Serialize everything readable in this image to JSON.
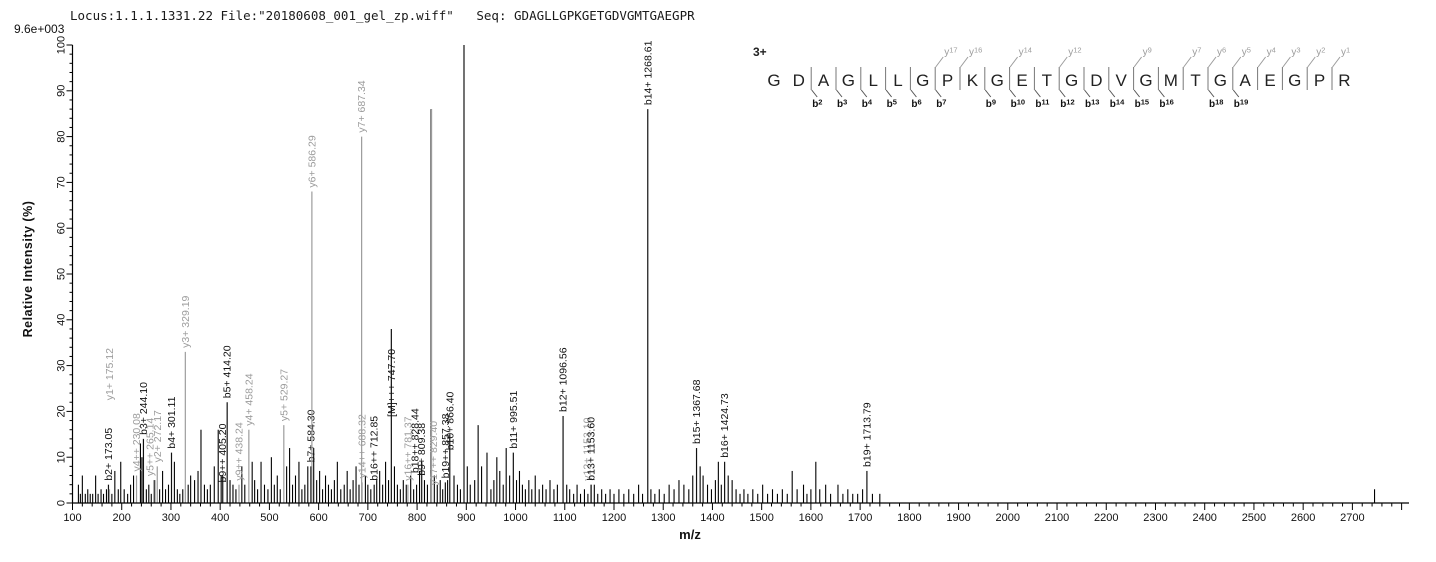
{
  "header": {
    "info_line": "Locus:1.1.1.1331.22 File:\"20180608_001_gel_zp.wiff\"   Seq: GDAGLLGPKGETGDVGMTGAEGPR"
  },
  "sequence_panel": {
    "charge": "3+",
    "residues": [
      "G",
      "D",
      "A",
      "G",
      "L",
      "L",
      "G",
      "P",
      "K",
      "G",
      "E",
      "T",
      "G",
      "D",
      "V",
      "G",
      "M",
      "T",
      "G",
      "A",
      "E",
      "G",
      "P",
      "R"
    ],
    "y_ions": [
      {
        "num": 17,
        "after_residue": 7
      },
      {
        "num": 16,
        "after_residue": 8
      },
      {
        "num": 14,
        "after_residue": 10
      },
      {
        "num": 12,
        "after_residue": 12
      },
      {
        "num": 9,
        "after_residue": 15
      },
      {
        "num": 7,
        "after_residue": 17
      },
      {
        "num": 6,
        "after_residue": 18
      },
      {
        "num": 5,
        "after_residue": 19
      },
      {
        "num": 4,
        "after_residue": 20
      },
      {
        "num": 3,
        "after_residue": 21
      },
      {
        "num": 2,
        "after_residue": 22
      },
      {
        "num": 1,
        "after_residue": 23
      }
    ],
    "b_ions": [
      {
        "num": 2,
        "after_residue": 2
      },
      {
        "num": 3,
        "after_residue": 3
      },
      {
        "num": 4,
        "after_residue": 4
      },
      {
        "num": 5,
        "after_residue": 5
      },
      {
        "num": 6,
        "after_residue": 6
      },
      {
        "num": 7,
        "after_residue": 7
      },
      {
        "num": 9,
        "after_residue": 9
      },
      {
        "num": 10,
        "after_residue": 10
      },
      {
        "num": 11,
        "after_residue": 11
      },
      {
        "num": 12,
        "after_residue": 12
      },
      {
        "num": 13,
        "after_residue": 13
      },
      {
        "num": 14,
        "after_residue": 14
      },
      {
        "num": 15,
        "after_residue": 15
      },
      {
        "num": 16,
        "after_residue": 16
      },
      {
        "num": 18,
        "after_residue": 18
      },
      {
        "num": 19,
        "after_residue": 19
      }
    ]
  },
  "chart_data": {
    "type": "bar",
    "subtype": "mass-spectrum-stick",
    "title": "",
    "xlabel": "m/z",
    "ylabel": "Relative  Intensity (%)",
    "intensity_scale": "9.6e+003",
    "xlim": [
      100,
      2815
    ],
    "ylim": [
      0,
      100
    ],
    "x_tick_major": 100,
    "x_tick_minor": 20,
    "x_tick_label_max": 2700,
    "y_tick_major": 10,
    "y_tick_minor": 2,
    "grid": false,
    "colors": {
      "b_ion": "#111111",
      "y_ion": "#9c9c9c",
      "unlabeled": "#000000",
      "axis": "#000000",
      "residue": "#222222",
      "boundary_bar": "#777777"
    },
    "labeled_peaks": [
      {
        "label": "b2+ 173.05",
        "mz": 173.05,
        "intensity_pct": 4,
        "ion": "b"
      },
      {
        "label": "y1+ 175.12",
        "mz": 175.12,
        "intensity_pct": 3,
        "ion": "y",
        "lift": 85
      },
      {
        "label": "y4++ 230.08",
        "mz": 230.08,
        "intensity_pct": 6,
        "ion": "y"
      },
      {
        "label": "b3+ 244.10",
        "mz": 244.1,
        "intensity_pct": 14,
        "ion": "b"
      },
      {
        "label": "y5++ 265.14",
        "mz": 265.14,
        "intensity_pct": 5,
        "ion": "y",
        "dx": -4
      },
      {
        "label": "y2+ 272.17",
        "mz": 272.17,
        "intensity_pct": 8,
        "ion": "y"
      },
      {
        "label": "b4+ 301.11",
        "mz": 301.11,
        "intensity_pct": 11,
        "ion": "b"
      },
      {
        "label": "y3+ 329.19",
        "mz": 329.19,
        "intensity_pct": 33,
        "ion": "y"
      },
      {
        "label": "b9++ 405.20",
        "mz": 405.2,
        "intensity_pct": 6,
        "ion": "b",
        "lift": -11
      },
      {
        "label": "b5+ 414.20",
        "mz": 414.2,
        "intensity_pct": 22,
        "ion": "b"
      },
      {
        "label": "y9++ 438.24",
        "mz": 438.24,
        "intensity_pct": 4,
        "ion": "y"
      },
      {
        "label": "y4+ 458.24",
        "mz": 458.24,
        "intensity_pct": 16,
        "ion": "y"
      },
      {
        "label": "y5+ 529.27",
        "mz": 529.27,
        "intensity_pct": 17,
        "ion": "y"
      },
      {
        "label": "b7+ 584.30",
        "mz": 584.3,
        "intensity_pct": 8,
        "ion": "b"
      },
      {
        "label": "y6+ 586.29",
        "mz": 586.29,
        "intensity_pct": 68,
        "ion": "y"
      },
      {
        "label": "y7+ 687.34",
        "mz": 687.34,
        "intensity_pct": 80,
        "ion": "y"
      },
      {
        "label": "y14++ 688.32",
        "mz": 688.32,
        "intensity_pct": 4.5,
        "ion": "y"
      },
      {
        "label": "b16++ 712.85",
        "mz": 712.85,
        "intensity_pct": 4,
        "ion": "b"
      },
      {
        "label": "[M]+++ 747.70",
        "mz": 747.7,
        "intensity_pct": 38,
        "ion": "M",
        "lift": -92
      },
      {
        "label": "y16++ 781.37",
        "mz": 781.37,
        "intensity_pct": 4,
        "ion": "y"
      },
      {
        "label": "b9+ 809.38",
        "mz": 809.38,
        "intensity_pct": 9,
        "ion": "b",
        "lift": -18
      },
      {
        "label": "b18++ 828.44",
        "mz": 828.44,
        "intensity_pct": 86,
        "ion": "b",
        "lift": -368,
        "dx": -16
      },
      {
        "label": "y17++ 829.40",
        "mz": 829.4,
        "intensity_pct": 86,
        "ion": "y",
        "lift": -380,
        "dx": 2
      },
      {
        "label": "b19++ 857.38",
        "mz": 857.38,
        "intensity_pct": 4.5,
        "ion": "b"
      },
      {
        "label": "b10+ 866.40",
        "mz": 866.4,
        "intensity_pct": 15,
        "ion": "b",
        "lift": -20
      },
      {
        "label": "b11+ 995.51",
        "mz": 995.51,
        "intensity_pct": 11,
        "ion": "b"
      },
      {
        "label": "b12+ 1096.56",
        "mz": 1096.56,
        "intensity_pct": 19,
        "ion": "b"
      },
      {
        "label": "y12+ 1153.10",
        "mz": 1153.1,
        "intensity_pct": 4,
        "ion": "y",
        "dx": -4
      },
      {
        "label": "b13+ 1153.60",
        "mz": 1153.6,
        "intensity_pct": 4,
        "ion": "b"
      },
      {
        "label": "b14+ 1268.61",
        "mz": 1268.61,
        "intensity_pct": 86,
        "ion": "b"
      },
      {
        "label": "b15+ 1367.68",
        "mz": 1367.68,
        "intensity_pct": 12,
        "ion": "b"
      },
      {
        "label": "b16+ 1424.73",
        "mz": 1424.73,
        "intensity_pct": 9,
        "ion": "b"
      },
      {
        "label": "b19+ 1713.79",
        "mz": 1713.79,
        "intensity_pct": 7,
        "ion": "b"
      }
    ],
    "unlabeled_peaks": [
      [
        112,
        4
      ],
      [
        116,
        2
      ],
      [
        120,
        6
      ],
      [
        126,
        2
      ],
      [
        131,
        3
      ],
      [
        136,
        2
      ],
      [
        141,
        2
      ],
      [
        147,
        6
      ],
      [
        152,
        2
      ],
      [
        158,
        3
      ],
      [
        163,
        2
      ],
      [
        169,
        3
      ],
      [
        180,
        2
      ],
      [
        186,
        7
      ],
      [
        193,
        3
      ],
      [
        198,
        9
      ],
      [
        205,
        3
      ],
      [
        212,
        2
      ],
      [
        218,
        4
      ],
      [
        224,
        6
      ],
      [
        238,
        13
      ],
      [
        241,
        10
      ],
      [
        250,
        3
      ],
      [
        255,
        4
      ],
      [
        260,
        2
      ],
      [
        267,
        5
      ],
      [
        277,
        3
      ],
      [
        283,
        7
      ],
      [
        289,
        3
      ],
      [
        295,
        4
      ],
      [
        307,
        9
      ],
      [
        313,
        3
      ],
      [
        318,
        2
      ],
      [
        324,
        3
      ],
      [
        335,
        4
      ],
      [
        340,
        6
      ],
      [
        348,
        5
      ],
      [
        355,
        7
      ],
      [
        361,
        16
      ],
      [
        368,
        4
      ],
      [
        374,
        3
      ],
      [
        380,
        4
      ],
      [
        388,
        8
      ],
      [
        396,
        16
      ],
      [
        402,
        6
      ],
      [
        420,
        5
      ],
      [
        426,
        4
      ],
      [
        432,
        3
      ],
      [
        444,
        8
      ],
      [
        450,
        4
      ],
      [
        465,
        9
      ],
      [
        470,
        5
      ],
      [
        476,
        3
      ],
      [
        483,
        9
      ],
      [
        490,
        4
      ],
      [
        497,
        3
      ],
      [
        504,
        10
      ],
      [
        510,
        4
      ],
      [
        516,
        6
      ],
      [
        522,
        3
      ],
      [
        535,
        8
      ],
      [
        541,
        12
      ],
      [
        547,
        4
      ],
      [
        553,
        6
      ],
      [
        560,
        9
      ],
      [
        566,
        3
      ],
      [
        572,
        4
      ],
      [
        578,
        8
      ],
      [
        590,
        12
      ],
      [
        596,
        5
      ],
      [
        602,
        7
      ],
      [
        608,
        3
      ],
      [
        614,
        6
      ],
      [
        620,
        4
      ],
      [
        626,
        3
      ],
      [
        632,
        5
      ],
      [
        638,
        9
      ],
      [
        645,
        3
      ],
      [
        652,
        4
      ],
      [
        658,
        7
      ],
      [
        664,
        3
      ],
      [
        670,
        5
      ],
      [
        676,
        8
      ],
      [
        682,
        4
      ],
      [
        695,
        6
      ],
      [
        700,
        4
      ],
      [
        706,
        3
      ],
      [
        718,
        5
      ],
      [
        724,
        7
      ],
      [
        730,
        4
      ],
      [
        736,
        9
      ],
      [
        742,
        5
      ],
      [
        754,
        8
      ],
      [
        760,
        4
      ],
      [
        766,
        3
      ],
      [
        772,
        5
      ],
      [
        778,
        4
      ],
      [
        787,
        6
      ],
      [
        793,
        3
      ],
      [
        799,
        4
      ],
      [
        805,
        7
      ],
      [
        815,
        5
      ],
      [
        821,
        4
      ],
      [
        835,
        6
      ],
      [
        841,
        4
      ],
      [
        847,
        5
      ],
      [
        852,
        3
      ],
      [
        862,
        5
      ],
      [
        875,
        6
      ],
      [
        882,
        4
      ],
      [
        888,
        3
      ],
      [
        895.3,
        100
      ],
      [
        902,
        8
      ],
      [
        908,
        4
      ],
      [
        917,
        5
      ],
      [
        924,
        17
      ],
      [
        931,
        8
      ],
      [
        942,
        11
      ],
      [
        950,
        3
      ],
      [
        956,
        5
      ],
      [
        962,
        10
      ],
      [
        968,
        7
      ],
      [
        975,
        4
      ],
      [
        981,
        12
      ],
      [
        988,
        6
      ],
      [
        1002,
        5
      ],
      [
        1008,
        7
      ],
      [
        1014,
        4
      ],
      [
        1020,
        3
      ],
      [
        1027,
        5
      ],
      [
        1033,
        3
      ],
      [
        1040,
        6
      ],
      [
        1048,
        3
      ],
      [
        1055,
        4
      ],
      [
        1062,
        3
      ],
      [
        1070,
        5
      ],
      [
        1078,
        3
      ],
      [
        1085,
        4
      ],
      [
        1104,
        4
      ],
      [
        1110,
        3
      ],
      [
        1118,
        2
      ],
      [
        1125,
        4
      ],
      [
        1132,
        2
      ],
      [
        1140,
        3
      ],
      [
        1147,
        2
      ],
      [
        1160,
        4
      ],
      [
        1167,
        2
      ],
      [
        1175,
        3
      ],
      [
        1183,
        2
      ],
      [
        1192,
        3
      ],
      [
        1200,
        2
      ],
      [
        1210,
        3
      ],
      [
        1220,
        2
      ],
      [
        1230,
        3
      ],
      [
        1240,
        2
      ],
      [
        1250,
        4
      ],
      [
        1258,
        2
      ],
      [
        1275,
        3
      ],
      [
        1283,
        2
      ],
      [
        1292,
        3
      ],
      [
        1302,
        2
      ],
      [
        1312,
        4
      ],
      [
        1322,
        3
      ],
      [
        1332,
        5
      ],
      [
        1342,
        4
      ],
      [
        1352,
        3
      ],
      [
        1360,
        6
      ],
      [
        1375,
        8
      ],
      [
        1381,
        6
      ],
      [
        1390,
        4
      ],
      [
        1398,
        3
      ],
      [
        1406,
        5
      ],
      [
        1412,
        9
      ],
      [
        1418,
        4
      ],
      [
        1432,
        6
      ],
      [
        1440,
        5
      ],
      [
        1448,
        3
      ],
      [
        1456,
        2
      ],
      [
        1464,
        3
      ],
      [
        1472,
        2
      ],
      [
        1482,
        3
      ],
      [
        1492,
        2
      ],
      [
        1502,
        4
      ],
      [
        1512,
        2
      ],
      [
        1522,
        3
      ],
      [
        1532,
        2
      ],
      [
        1542,
        3
      ],
      [
        1552,
        2
      ],
      [
        1562,
        7
      ],
      [
        1572,
        3
      ],
      [
        1585,
        4
      ],
      [
        1592,
        2
      ],
      [
        1600,
        3
      ],
      [
        1610,
        9
      ],
      [
        1618,
        3
      ],
      [
        1630,
        4
      ],
      [
        1640,
        2
      ],
      [
        1655,
        4
      ],
      [
        1665,
        2
      ],
      [
        1675,
        3
      ],
      [
        1685,
        2
      ],
      [
        1695,
        2
      ],
      [
        1705,
        3
      ],
      [
        1725,
        2
      ],
      [
        1740,
        2
      ],
      [
        2745,
        3
      ]
    ]
  }
}
